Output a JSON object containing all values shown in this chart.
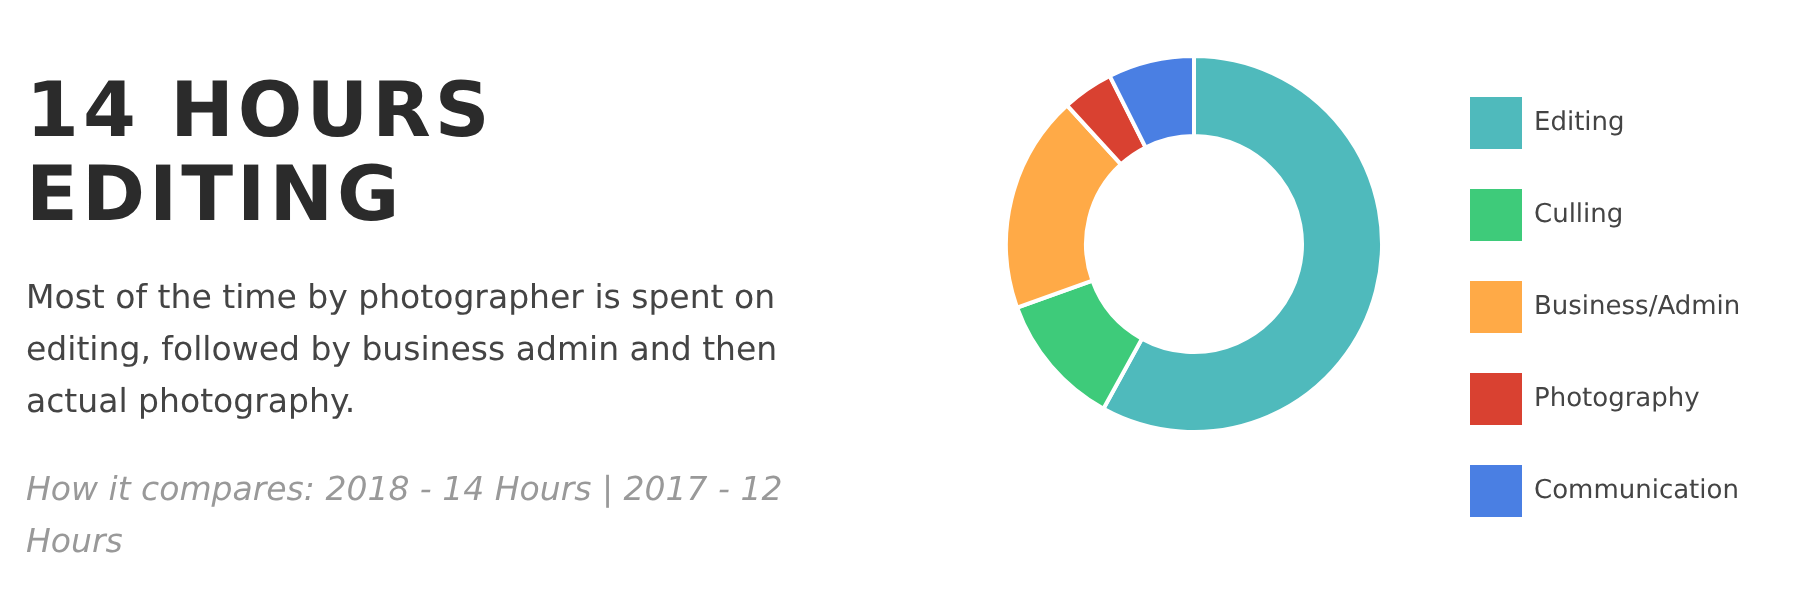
{
  "chart_data": {
    "type": "donut",
    "title": "14 HOURS EDITING",
    "subtitle": "Most of the time by photographer is spent on editing, followed by business admin and then actual photography.",
    "annotations": [
      "How it compares: 2018 - 14 Hours | 2017 - 12 Hours"
    ],
    "categories": [
      "Editing",
      "Culling",
      "Business/Admin",
      "Photography",
      "Communication"
    ],
    "values": [
      58,
      11.5,
      18.7,
      4.4,
      7.4
    ],
    "colors": [
      "#4fbabc",
      "#3ecb7a",
      "#ffaa47",
      "#d94131",
      "#4a7fe3"
    ],
    "legend": "right"
  }
}
